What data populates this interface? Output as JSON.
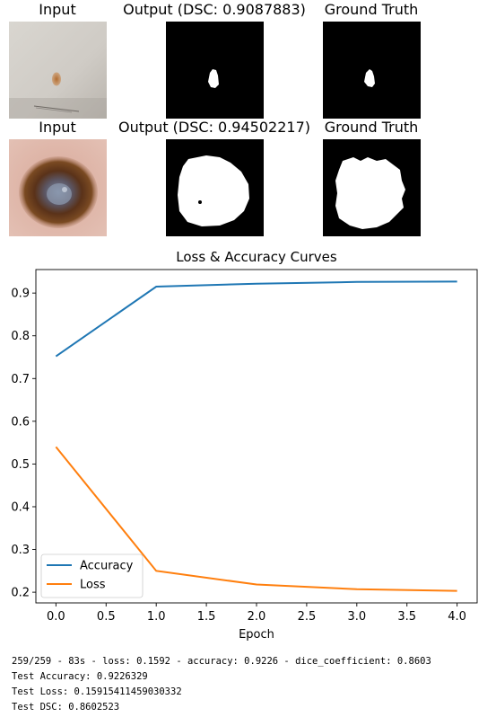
{
  "panels": [
    {
      "input_title": "Input",
      "output_title": "Output (DSC: 0.9087883)",
      "gt_title": "Ground Truth"
    },
    {
      "input_title": "Input",
      "output_title": "Output (DSC: 0.94502217)",
      "gt_title": "Ground Truth"
    }
  ],
  "chart_data": {
    "type": "line",
    "title": "Loss & Accuracy Curves",
    "xlabel": "Epoch",
    "ylabel": "",
    "x": [
      0,
      1,
      2,
      3,
      4
    ],
    "xlim": [
      -0.2,
      4.2
    ],
    "ylim": [
      0.175,
      0.955
    ],
    "xticks": [
      "0.0",
      "0.5",
      "1.0",
      "1.5",
      "2.0",
      "2.5",
      "3.0",
      "3.5",
      "4.0"
    ],
    "yticks": [
      "0.2",
      "0.3",
      "0.4",
      "0.5",
      "0.6",
      "0.7",
      "0.8",
      "0.9"
    ],
    "legend_position": "lower-left",
    "grid": false,
    "series": [
      {
        "name": "Accuracy",
        "color": "#1f77b4",
        "values": [
          0.752,
          0.915,
          0.922,
          0.926,
          0.927
        ]
      },
      {
        "name": "Loss",
        "color": "#ff7f0e",
        "values": [
          0.54,
          0.25,
          0.218,
          0.207,
          0.203
        ]
      }
    ]
  },
  "log": {
    "line1": "259/259 - 83s - loss: 0.1592 - accuracy: 0.9226 - dice_coefficient: 0.8603",
    "line2": "Test Accuracy: 0.9226329",
    "line3": "Test Loss: 0.15915411459030332",
    "line4": "Test DSC: 0.8602523"
  }
}
